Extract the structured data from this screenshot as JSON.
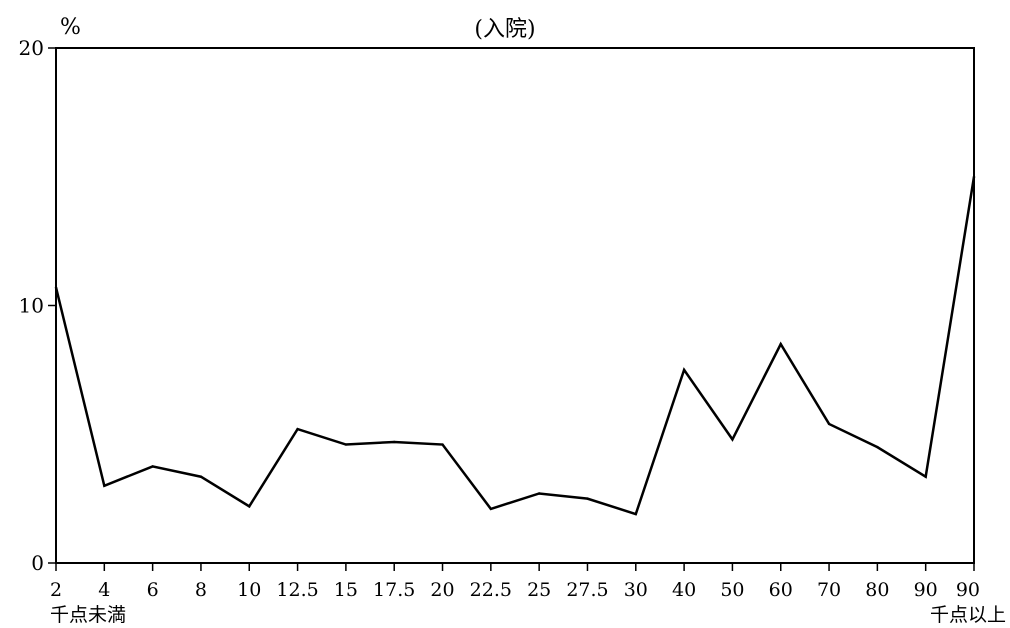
{
  "chart_data": {
    "type": "line",
    "title": "(入院)",
    "ylabel": "%",
    "xlabel": "",
    "ylim": [
      0,
      20
    ],
    "yticks": [
      "0",
      "10",
      "20"
    ],
    "categories": [
      "2",
      "4",
      "6",
      "8",
      "10",
      "12.5",
      "15",
      "17.5",
      "20",
      "22.5",
      "25",
      "27.5",
      "30",
      "40",
      "50",
      "60",
      "70",
      "80",
      "90",
      "90"
    ],
    "annotations": {
      "first_category_note": "千点未満",
      "last_category_note": "千点以上"
    },
    "series": [
      {
        "values": [
          10.7,
          3.0,
          3.75,
          3.35,
          2.2,
          5.2,
          4.6,
          4.7,
          4.6,
          2.1,
          2.7,
          2.5,
          1.9,
          7.5,
          4.8,
          8.5,
          5.4,
          4.5,
          3.35,
          15.0
        ],
        "color": "#000000"
      }
    ],
    "grid": false,
    "legend": "none"
  }
}
